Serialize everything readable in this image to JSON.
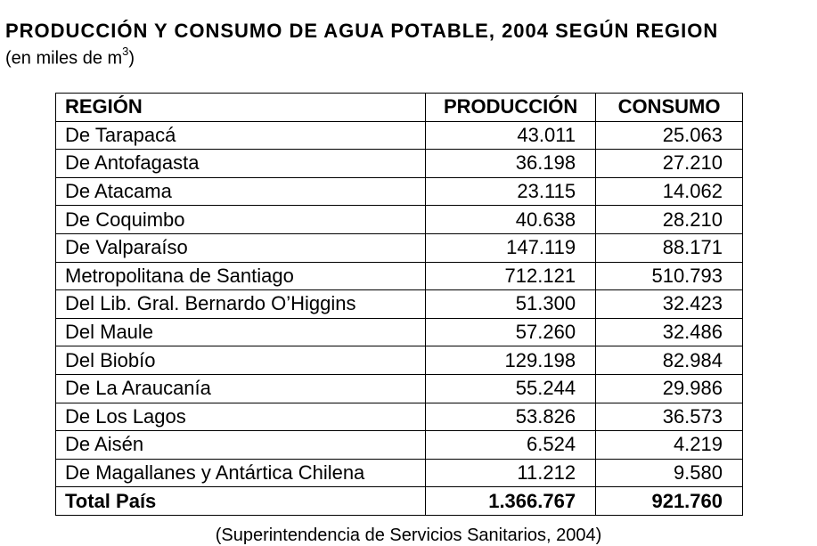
{
  "title": "PRODUCCIÓN Y CONSUMO DE AGUA POTABLE, 2004 SEGÚN REGION",
  "subtitle_prefix": "(en miles de m",
  "subtitle_sup": "3",
  "subtitle_suffix": ")",
  "table": {
    "headers": [
      "REGIÓN",
      "PRODUCCIÓN",
      "CONSUMO"
    ],
    "rows": [
      [
        "De Tarapacá",
        "43.011",
        "25.063"
      ],
      [
        "De Antofagasta",
        "36.198",
        "27.210"
      ],
      [
        "De Atacama",
        "23.115",
        "14.062"
      ],
      [
        "De Coquimbo",
        "40.638",
        "28.210"
      ],
      [
        "De Valparaíso",
        "147.119",
        "88.171"
      ],
      [
        "Metropolitana de Santiago",
        "712.121",
        "510.793"
      ],
      [
        "Del Lib. Gral. Bernardo O’Higgins",
        "51.300",
        "32.423"
      ],
      [
        "Del Maule",
        "57.260",
        "32.486"
      ],
      [
        "Del Biobío",
        "129.198",
        "82.984"
      ],
      [
        "De La Araucanía",
        "55.244",
        "29.986"
      ],
      [
        "De Los Lagos",
        "53.826",
        "36.573"
      ],
      [
        "De Aisén",
        "6.524",
        "4.219"
      ],
      [
        "De Magallanes y Antártica Chilena",
        "11.212",
        "9.580"
      ]
    ],
    "total": [
      "Total País",
      "1.366.767",
      "921.760"
    ]
  },
  "source": "(Superintendencia de Servicios Sanitarios, 2004)"
}
